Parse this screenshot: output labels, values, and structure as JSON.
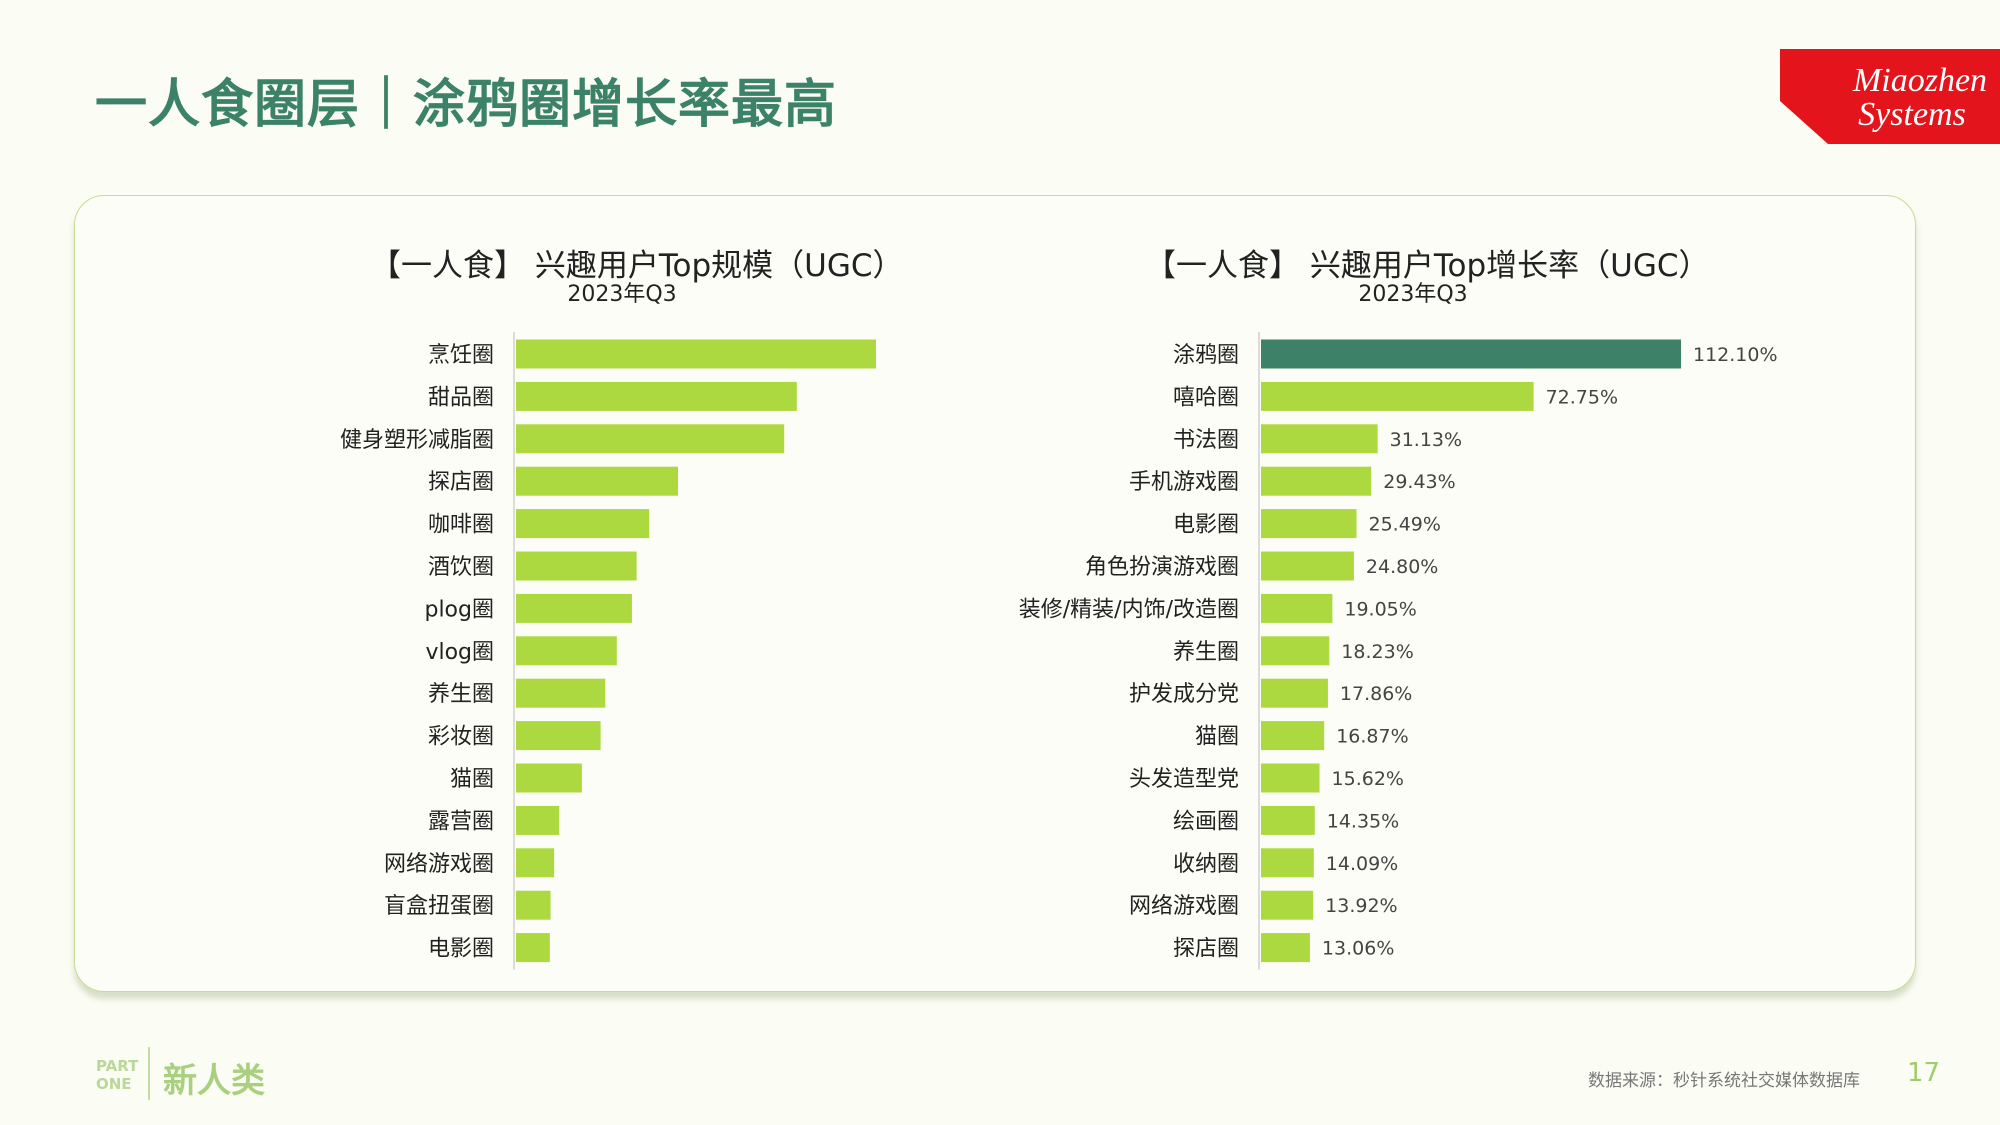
{
  "header": {
    "title": "一人食圈层｜涂鸦圈增长率最高"
  },
  "logo": {
    "line1": "Miaozhen",
    "line2": "Systems"
  },
  "colors": {
    "bar": "#acd940",
    "highlight": "#3d8168",
    "title": "#3c8268",
    "logo_red": "#e3141b"
  },
  "chart_data": [
    {
      "type": "bar",
      "orientation": "horizontal",
      "title": "【一人食】 兴趣用户Top规模（UGC）",
      "subtitle": "2023年Q3",
      "categories": [
        "烹饪圈",
        "甜品圈",
        "健身塑形减脂圈",
        "探店圈",
        "咖啡圈",
        "酒饮圈",
        "plog圈",
        "vlog圈",
        "养生圈",
        "彩妆圈",
        "猫圈",
        "露营圈",
        "网络游戏圈",
        "盲盒扭蛋圈",
        "电影圈"
      ],
      "values": [
        100,
        78,
        74.5,
        45,
        37,
        33.5,
        32.2,
        28,
        24.8,
        23.5,
        18.3,
        12,
        10.6,
        9.6,
        9.4
      ],
      "value_labels_shown": false,
      "xlim": [
        0,
        100
      ]
    },
    {
      "type": "bar",
      "orientation": "horizontal",
      "title": "【一人食】 兴趣用户Top增长率（UGC）",
      "subtitle": "2023年Q3",
      "categories": [
        "涂鸦圈",
        "嘻哈圈",
        "书法圈",
        "手机游戏圈",
        "电影圈",
        "角色扮演游戏圈",
        "装修/精装/内饰/改造圈",
        "养生圈",
        "护发成分党",
        "猫圈",
        "头发造型党",
        "绘画圈",
        "收纳圈",
        "网络游戏圈",
        "探店圈"
      ],
      "values": [
        112.1,
        72.75,
        31.13,
        29.43,
        25.49,
        24.8,
        19.05,
        18.23,
        17.86,
        16.87,
        15.62,
        14.35,
        14.09,
        13.92,
        13.06
      ],
      "labels": [
        "112.10%",
        "72.75%",
        "31.13%",
        "29.43%",
        "25.49%",
        "24.80%",
        "19.05%",
        "18.23%",
        "17.86%",
        "16.87%",
        "15.62%",
        "14.35%",
        "14.09%",
        "13.92%",
        "13.06%"
      ],
      "highlight_index": 0,
      "unit": "%"
    }
  ],
  "footer": {
    "part_line1": "PART",
    "part_line2": "ONE",
    "section": "新人类",
    "source": "数据来源：秒针系统社交媒体数据库",
    "page": "17"
  }
}
